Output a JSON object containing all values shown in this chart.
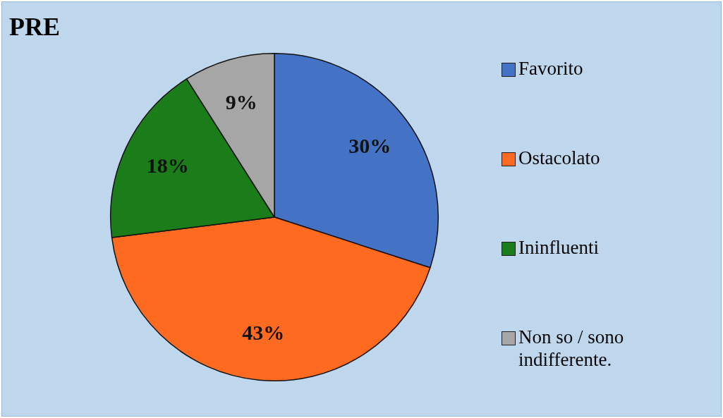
{
  "chart_data": {
    "type": "pie",
    "title": "PRE",
    "categories": [
      "Favorito",
      "Ostacolato",
      "Ininfluenti",
      "Non so / sono indifferente."
    ],
    "values": [
      30,
      43,
      18,
      9
    ],
    "colors": [
      "#4472c4",
      "#ff6a21",
      "#1a7d1a",
      "#a6a6a6"
    ],
    "value_labels": [
      "30%",
      "43%",
      "18%",
      "9%"
    ],
    "legend": "right"
  }
}
